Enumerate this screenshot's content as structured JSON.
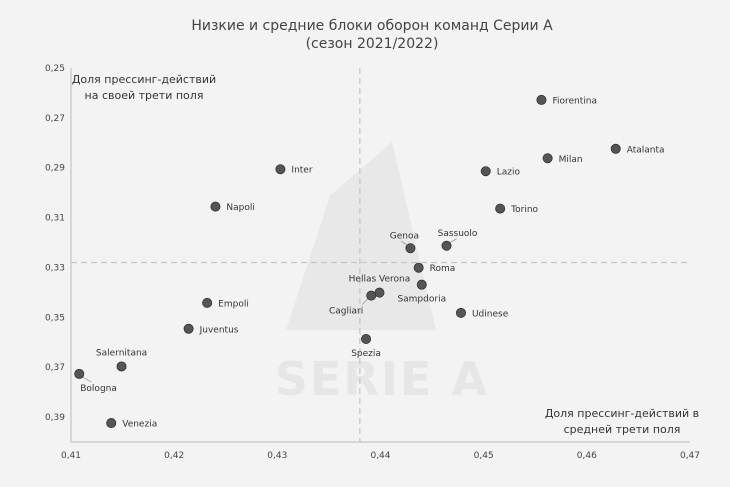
{
  "chart_data": {
    "type": "scatter",
    "title": "Низкие и средние блоки оборон команд Серии А",
    "subtitle": "(сезон 2021/2022)",
    "watermark": "SERIE A",
    "annotations": {
      "top_left": [
        "Доля прессинг-действий",
        "на своей трети поля"
      ],
      "bottom_right": [
        "Доля прессинг-действий в",
        "средней трети поля"
      ]
    },
    "xlim": [
      0.41,
      0.47
    ],
    "ylim": [
      0.25,
      0.4
    ],
    "y_inverted": true,
    "x_ticks": [
      "0,41",
      "0,42",
      "0,43",
      "0,44",
      "0,45",
      "0,46",
      "0,47"
    ],
    "y_ticks": [
      "0,25",
      "0,27",
      "0,29",
      "0,31",
      "0,33",
      "0,35",
      "0,37",
      "0,39"
    ],
    "x_tick_values": [
      0.41,
      0.42,
      0.43,
      0.44,
      0.45,
      0.46,
      0.47
    ],
    "y_tick_values": [
      0.25,
      0.27,
      0.29,
      0.31,
      0.33,
      0.35,
      0.37,
      0.39
    ],
    "reference_lines": {
      "x": 0.438,
      "y": 0.328
    },
    "grid": false,
    "point_color": "#555555",
    "points": [
      {
        "name": "Fiorentina",
        "x": 0.4556,
        "y": 0.2628,
        "label_pos": "right"
      },
      {
        "name": "Atalanta",
        "x": 0.4628,
        "y": 0.2824,
        "label_pos": "right"
      },
      {
        "name": "Milan",
        "x": 0.4562,
        "y": 0.2862,
        "label_pos": "right"
      },
      {
        "name": "Lazio",
        "x": 0.4502,
        "y": 0.2914,
        "label_pos": "right"
      },
      {
        "name": "Torino",
        "x": 0.4516,
        "y": 0.3064,
        "label_pos": "right"
      },
      {
        "name": "Inter",
        "x": 0.4303,
        "y": 0.2906,
        "label_pos": "right"
      },
      {
        "name": "Napoli",
        "x": 0.424,
        "y": 0.3056,
        "label_pos": "right"
      },
      {
        "name": "Genoa",
        "x": 0.4429,
        "y": 0.3223,
        "label_pos": "top-left"
      },
      {
        "name": "Sassuolo",
        "x": 0.4464,
        "y": 0.3213,
        "label_pos": "top-right"
      },
      {
        "name": "Roma",
        "x": 0.4437,
        "y": 0.3301,
        "label_pos": "right"
      },
      {
        "name": "Hellas Verona",
        "x": 0.4399,
        "y": 0.3401,
        "label_pos": "top"
      },
      {
        "name": "Cagliari",
        "x": 0.4391,
        "y": 0.3413,
        "label_pos": "bottom-left"
      },
      {
        "name": "Sampdoria",
        "x": 0.444,
        "y": 0.3369,
        "label_pos": "bottom"
      },
      {
        "name": "Udinese",
        "x": 0.4478,
        "y": 0.3482,
        "label_pos": "right"
      },
      {
        "name": "Spezia",
        "x": 0.4386,
        "y": 0.3587,
        "label_pos": "bottom"
      },
      {
        "name": "Empoli",
        "x": 0.4232,
        "y": 0.3442,
        "label_pos": "right"
      },
      {
        "name": "Juventus",
        "x": 0.4214,
        "y": 0.3546,
        "label_pos": "right"
      },
      {
        "name": "Salernitana",
        "x": 0.4149,
        "y": 0.3697,
        "label_pos": "top"
      },
      {
        "name": "Bologna",
        "x": 0.4108,
        "y": 0.3727,
        "label_pos": "bottom-right"
      },
      {
        "name": "Venezia",
        "x": 0.4139,
        "y": 0.3924,
        "label_pos": "right"
      }
    ]
  }
}
